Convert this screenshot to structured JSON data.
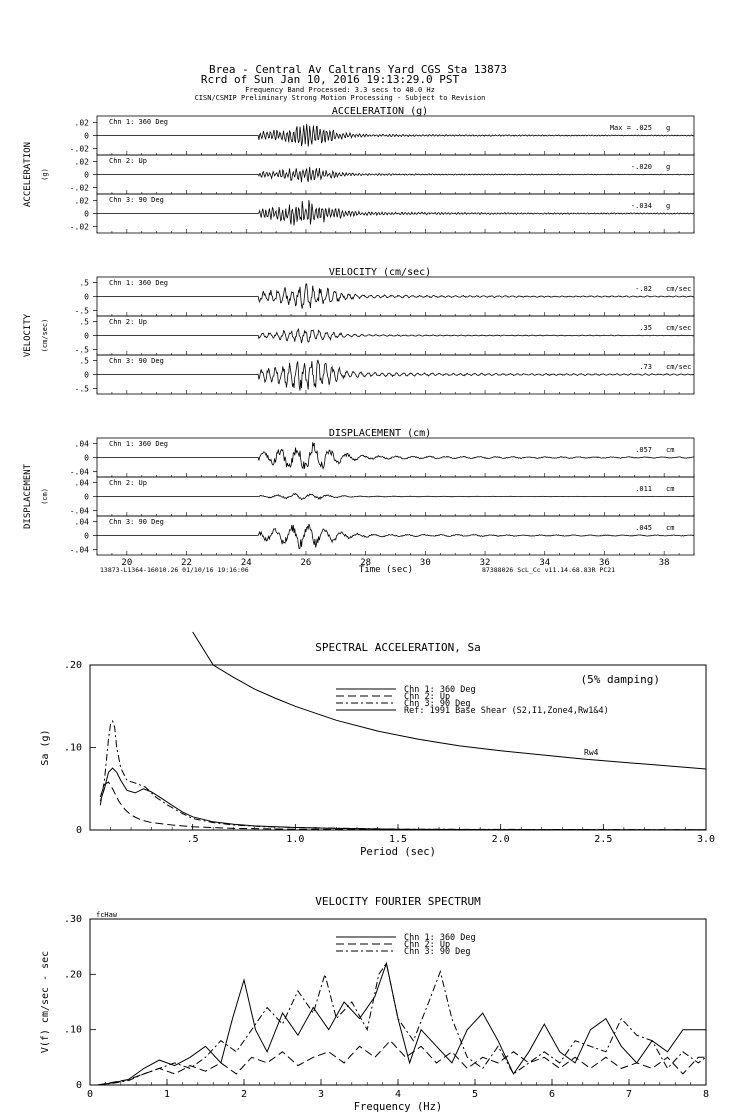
{
  "header": {
    "station_line": "Brea - Central Av Caltrans Yard      CGS Sta 13873",
    "record_line": "Rcrd of Sun Jan 10, 2016 19:13:29.0 PST",
    "band_line": "Frequency Band Processed: 3.3 secs to 40.0 Hz",
    "processing_line": "CISN/CSMIP Preliminary Strong Motion Processing - Subject to Revision"
  },
  "footer": {
    "left_id": "13873-L1364-16010.26 01/10/16 19:16:06",
    "right_id": "87388026  ScL_Cc  v11.14.68.83R PC21"
  },
  "chart_data": [
    {
      "type": "line",
      "panel": "timeseries",
      "x": {
        "label": "Time (sec)",
        "range": [
          19,
          39
        ],
        "ticks": [
          "20",
          "22",
          "24",
          "26",
          "28",
          "30",
          "32",
          "34",
          "36",
          "38"
        ]
      },
      "groups": [
        {
          "title": "ACCELERATION (g)",
          "side_label": "ACCELERATION",
          "unit_label": "(g)",
          "unit": "g",
          "ylim": [
            -0.03,
            0.03
          ],
          "tick_labels": [
            ".02",
            "0",
            "-.02"
          ],
          "tick_values": [
            0.02,
            0,
            -0.02
          ],
          "channels": [
            {
              "name": "Chn 1: 360 Deg",
              "peak_text": "Max =   .025",
              "peak": 0.025
            },
            {
              "name": "Chn 2: Up",
              "peak_text": "-.020",
              "peak": -0.02
            },
            {
              "name": "Chn 3: 90 Deg",
              "peak_text": "-.034",
              "peak": -0.034
            }
          ]
        },
        {
          "title": "VELOCITY (cm/sec)",
          "side_label": "VELOCITY",
          "unit_label": "(cm/sec)",
          "unit": "cm/sec",
          "ylim": [
            -0.7,
            0.7
          ],
          "tick_labels": [
            ".5",
            "0",
            "-.5"
          ],
          "tick_values": [
            0.5,
            0,
            -0.5
          ],
          "channels": [
            {
              "name": "Chn 1: 360 Deg",
              "peak_text": "-.82",
              "peak": -0.82
            },
            {
              "name": "Chn 2: Up",
              "peak_text": ".35",
              "peak": 0.35
            },
            {
              "name": "Chn 3: 90 Deg",
              "peak_text": ".73",
              "peak": 0.73
            }
          ]
        },
        {
          "title": "DISPLACEMENT (cm)",
          "side_label": "DISPLACEMENT",
          "unit_label": "(cm)",
          "unit": "cm",
          "ylim": [
            -0.055,
            0.055
          ],
          "tick_labels": [
            ".04",
            "0",
            "-.04"
          ],
          "tick_values": [
            0.04,
            0,
            -0.04
          ],
          "channels": [
            {
              "name": "Chn 1: 360 Deg",
              "peak_text": ".057",
              "peak": 0.057
            },
            {
              "name": "Chn 2: Up",
              "peak_text": ".011",
              "peak": 0.011
            },
            {
              "name": "Chn 3: 90 Deg",
              "peak_text": ".045",
              "peak": 0.045
            }
          ]
        }
      ]
    },
    {
      "type": "line",
      "panel": "spectral",
      "title": "SPECTRAL ACCELERATION, Sa",
      "xlabel": "Period (sec)",
      "ylabel": "Sa (g)",
      "xlim": [
        0,
        3.0
      ],
      "ylim": [
        0,
        0.2
      ],
      "x_tick_labels": [
        ".5",
        "1.0",
        "1.5",
        "2.0",
        "2.5",
        "3.0"
      ],
      "x_tick_values": [
        0.5,
        1.0,
        1.5,
        2.0,
        2.5,
        3.0
      ],
      "y_tick_labels": [
        ".20",
        ".10",
        "0"
      ],
      "y_tick_values": [
        0.2,
        0.1,
        0
      ],
      "annotation": "(5% damping)",
      "curve_label": "Rw4",
      "series": [
        {
          "name": "Chn 1: 360 Deg",
          "dash": "",
          "points": [
            [
              0.05,
              0.035
            ],
            [
              0.07,
              0.05
            ],
            [
              0.09,
              0.07
            ],
            [
              0.11,
              0.075
            ],
            [
              0.13,
              0.07
            ],
            [
              0.15,
              0.06
            ],
            [
              0.18,
              0.048
            ],
            [
              0.22,
              0.045
            ],
            [
              0.26,
              0.05
            ],
            [
              0.3,
              0.046
            ],
            [
              0.35,
              0.038
            ],
            [
              0.4,
              0.03
            ],
            [
              0.45,
              0.022
            ],
            [
              0.5,
              0.016
            ],
            [
              0.6,
              0.01
            ],
            [
              0.7,
              0.007
            ],
            [
              0.8,
              0.005
            ],
            [
              1.0,
              0.003
            ],
            [
              1.2,
              0.002
            ],
            [
              1.5,
              0.001
            ],
            [
              2.0,
              0.0005
            ],
            [
              3.0,
              0.0002
            ]
          ]
        },
        {
          "name": "Chn 2: Up",
          "dash": "8,4",
          "points": [
            [
              0.05,
              0.04
            ],
            [
              0.07,
              0.055
            ],
            [
              0.09,
              0.058
            ],
            [
              0.11,
              0.05
            ],
            [
              0.14,
              0.035
            ],
            [
              0.17,
              0.025
            ],
            [
              0.2,
              0.018
            ],
            [
              0.25,
              0.012
            ],
            [
              0.3,
              0.009
            ],
            [
              0.4,
              0.006
            ],
            [
              0.5,
              0.004
            ],
            [
              0.7,
              0.002
            ],
            [
              1.0,
              0.001
            ],
            [
              1.5,
              0.0005
            ],
            [
              3.0,
              0.0001
            ]
          ]
        },
        {
          "name": "Chn 3: 90 Deg",
          "dash": "7,3,2,3",
          "points": [
            [
              0.05,
              0.03
            ],
            [
              0.07,
              0.06
            ],
            [
              0.09,
              0.11
            ],
            [
              0.1,
              0.128
            ],
            [
              0.11,
              0.132
            ],
            [
              0.12,
              0.125
            ],
            [
              0.13,
              0.1
            ],
            [
              0.15,
              0.075
            ],
            [
              0.18,
              0.06
            ],
            [
              0.22,
              0.057
            ],
            [
              0.27,
              0.052
            ],
            [
              0.32,
              0.04
            ],
            [
              0.38,
              0.03
            ],
            [
              0.45,
              0.02
            ],
            [
              0.5,
              0.014
            ],
            [
              0.6,
              0.009
            ],
            [
              0.7,
              0.006
            ],
            [
              0.85,
              0.004
            ],
            [
              1.0,
              0.003
            ],
            [
              1.5,
              0.001
            ],
            [
              3.0,
              0.0002
            ]
          ]
        },
        {
          "name": "Ref: 1991 Base Shear (S2,I1,Zone4,Rw1&4)",
          "dash": "",
          "points": [
            [
              0.5,
              0.24
            ],
            [
              0.6,
              0.2
            ],
            [
              0.7,
              0.185
            ],
            [
              0.8,
              0.171
            ],
            [
              0.9,
              0.16
            ],
            [
              1.0,
              0.15
            ],
            [
              1.2,
              0.133
            ],
            [
              1.4,
              0.12
            ],
            [
              1.6,
              0.11
            ],
            [
              1.8,
              0.102
            ],
            [
              2.0,
              0.096
            ],
            [
              2.2,
              0.091
            ],
            [
              2.4,
              0.086
            ],
            [
              2.6,
              0.082
            ],
            [
              2.8,
              0.078
            ],
            [
              3.0,
              0.074
            ]
          ]
        }
      ]
    },
    {
      "type": "line",
      "panel": "fourier",
      "title": "VELOCITY FOURIER SPECTRUM",
      "xlabel": "Frequency (Hz)",
      "ylabel": "V(f)   cm/sec - sec",
      "corner_label": "fcHaw",
      "xlim": [
        0,
        8
      ],
      "ylim": [
        0,
        0.3
      ],
      "x_tick_labels": [
        "0",
        "1",
        "2",
        "3",
        "4",
        "5",
        "6",
        "7",
        "8"
      ],
      "x_tick_values": [
        0,
        1,
        2,
        3,
        4,
        5,
        6,
        7,
        8
      ],
      "y_tick_labels": [
        ".30",
        ".20",
        ".10",
        "0"
      ],
      "y_tick_values": [
        0.3,
        0.2,
        0.1,
        0
      ],
      "series": [
        {
          "name": "Chn 1: 360 Deg",
          "dash": "",
          "points": [
            [
              0.1,
              0
            ],
            [
              0.3,
              0.004
            ],
            [
              0.5,
              0.01
            ],
            [
              0.7,
              0.03
            ],
            [
              0.9,
              0.045
            ],
            [
              1.1,
              0.035
            ],
            [
              1.3,
              0.05
            ],
            [
              1.5,
              0.07
            ],
            [
              1.7,
              0.04
            ],
            [
              1.85,
              0.12
            ],
            [
              2.0,
              0.19
            ],
            [
              2.15,
              0.1
            ],
            [
              2.3,
              0.06
            ],
            [
              2.5,
              0.13
            ],
            [
              2.7,
              0.09
            ],
            [
              2.9,
              0.14
            ],
            [
              3.1,
              0.1
            ],
            [
              3.3,
              0.15
            ],
            [
              3.5,
              0.12
            ],
            [
              3.7,
              0.16
            ],
            [
              3.85,
              0.22
            ],
            [
              4.0,
              0.12
            ],
            [
              4.15,
              0.04
            ],
            [
              4.3,
              0.1
            ],
            [
              4.5,
              0.07
            ],
            [
              4.7,
              0.04
            ],
            [
              4.9,
              0.1
            ],
            [
              5.1,
              0.13
            ],
            [
              5.3,
              0.08
            ],
            [
              5.5,
              0.02
            ],
            [
              5.7,
              0.06
            ],
            [
              5.9,
              0.11
            ],
            [
              6.1,
              0.06
            ],
            [
              6.3,
              0.04
            ],
            [
              6.5,
              0.1
            ],
            [
              6.7,
              0.12
            ],
            [
              6.9,
              0.07
            ],
            [
              7.1,
              0.04
            ],
            [
              7.3,
              0.08
            ],
            [
              7.5,
              0.06
            ],
            [
              7.7,
              0.1
            ],
            [
              7.9,
              0.1
            ],
            [
              8.0,
              0.1
            ]
          ]
        },
        {
          "name": "Chn 2: Up",
          "dash": "8,4",
          "points": [
            [
              0.1,
              0
            ],
            [
              0.3,
              0.005
            ],
            [
              0.5,
              0.01
            ],
            [
              0.7,
              0.02
            ],
            [
              0.9,
              0.03
            ],
            [
              1.1,
              0.02
            ],
            [
              1.3,
              0.035
            ],
            [
              1.5,
              0.025
            ],
            [
              1.7,
              0.04
            ],
            [
              1.9,
              0.02
            ],
            [
              2.1,
              0.05
            ],
            [
              2.3,
              0.04
            ],
            [
              2.5,
              0.06
            ],
            [
              2.7,
              0.035
            ],
            [
              2.9,
              0.05
            ],
            [
              3.1,
              0.06
            ],
            [
              3.3,
              0.04
            ],
            [
              3.5,
              0.07
            ],
            [
              3.7,
              0.05
            ],
            [
              3.9,
              0.08
            ],
            [
              4.1,
              0.05
            ],
            [
              4.3,
              0.07
            ],
            [
              4.5,
              0.04
            ],
            [
              4.7,
              0.06
            ],
            [
              4.9,
              0.03
            ],
            [
              5.1,
              0.05
            ],
            [
              5.3,
              0.04
            ],
            [
              5.5,
              0.06
            ],
            [
              5.7,
              0.04
            ],
            [
              5.9,
              0.05
            ],
            [
              6.1,
              0.03
            ],
            [
              6.3,
              0.05
            ],
            [
              6.5,
              0.03
            ],
            [
              6.7,
              0.05
            ],
            [
              6.9,
              0.03
            ],
            [
              7.1,
              0.04
            ],
            [
              7.3,
              0.03
            ],
            [
              7.5,
              0.05
            ],
            [
              7.7,
              0.02
            ],
            [
              7.9,
              0.05
            ],
            [
              8.0,
              0.05
            ]
          ]
        },
        {
          "name": "Chn 3: 90 Deg",
          "dash": "7,3,2,3",
          "points": [
            [
              0.1,
              0
            ],
            [
              0.3,
              0.003
            ],
            [
              0.5,
              0.008
            ],
            [
              0.7,
              0.02
            ],
            [
              0.9,
              0.03
            ],
            [
              1.1,
              0.04
            ],
            [
              1.3,
              0.03
            ],
            [
              1.5,
              0.05
            ],
            [
              1.7,
              0.08
            ],
            [
              1.9,
              0.06
            ],
            [
              2.1,
              0.1
            ],
            [
              2.3,
              0.14
            ],
            [
              2.5,
              0.11
            ],
            [
              2.7,
              0.17
            ],
            [
              2.9,
              0.13
            ],
            [
              3.05,
              0.2
            ],
            [
              3.2,
              0.12
            ],
            [
              3.4,
              0.15
            ],
            [
              3.6,
              0.1
            ],
            [
              3.75,
              0.2
            ],
            [
              3.85,
              0.22
            ],
            [
              4.0,
              0.12
            ],
            [
              4.2,
              0.08
            ],
            [
              4.4,
              0.15
            ],
            [
              4.55,
              0.205
            ],
            [
              4.7,
              0.12
            ],
            [
              4.9,
              0.05
            ],
            [
              5.1,
              0.03
            ],
            [
              5.3,
              0.07
            ],
            [
              5.5,
              0.02
            ],
            [
              5.7,
              0.04
            ],
            [
              5.9,
              0.06
            ],
            [
              6.1,
              0.04
            ],
            [
              6.3,
              0.08
            ],
            [
              6.5,
              0.07
            ],
            [
              6.7,
              0.06
            ],
            [
              6.9,
              0.12
            ],
            [
              7.1,
              0.09
            ],
            [
              7.3,
              0.08
            ],
            [
              7.5,
              0.03
            ],
            [
              7.7,
              0.06
            ],
            [
              7.9,
              0.04
            ],
            [
              8.0,
              0.05
            ]
          ]
        }
      ]
    }
  ]
}
